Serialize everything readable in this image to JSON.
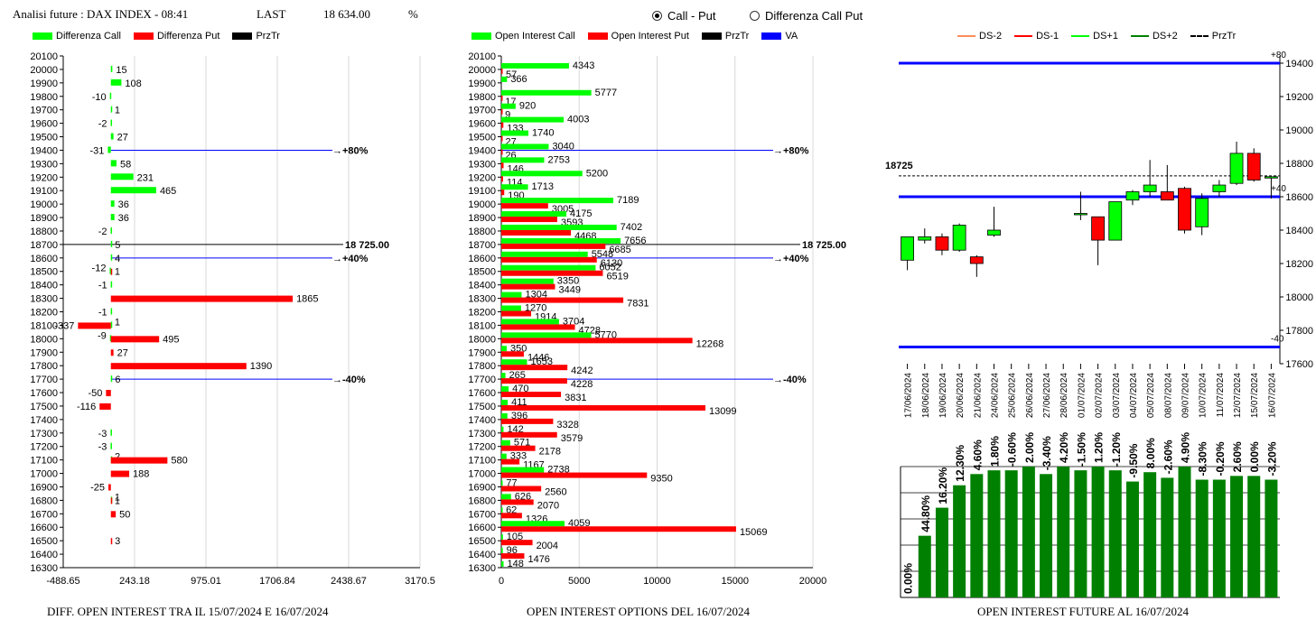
{
  "header": {
    "title": "Analisi future : DAX INDEX - 08:41",
    "last_label": "LAST",
    "last_value": "18 634.00",
    "pct_label": "%"
  },
  "radios": [
    {
      "label": "Call - Put",
      "selected": true
    },
    {
      "label": "Differenza Call Put",
      "selected": false
    }
  ],
  "colors": {
    "green": "#00ff00",
    "red": "#ff0000",
    "black": "#000000",
    "blue": "#0000ff",
    "dark_green": "#008000",
    "orange": "#ff8c5a"
  },
  "legend_left": [
    {
      "label": "Differenza Call",
      "color": "#00ff00"
    },
    {
      "label": "Differenza Put",
      "color": "#ff0000"
    },
    {
      "label": "PrzTr",
      "color": "#000000"
    }
  ],
  "legend_mid": [
    {
      "label": "Open Interest Call",
      "color": "#00ff00"
    },
    {
      "label": "Open Interest Put",
      "color": "#ff0000"
    },
    {
      "label": "PrzTr",
      "color": "#000000"
    },
    {
      "label": "VA",
      "color": "#0000ff"
    }
  ],
  "legend_right": [
    {
      "label": "DS-2",
      "color": "#ff8c5a",
      "style": "solid"
    },
    {
      "label": "DS-1",
      "color": "#ff0000",
      "style": "solid"
    },
    {
      "label": "DS+1",
      "color": "#00ff00",
      "style": "solid"
    },
    {
      "label": "DS+2",
      "color": "#008000",
      "style": "solid"
    },
    {
      "label": "PrzTr",
      "color": "#000000",
      "style": "dashed"
    }
  ],
  "footers": {
    "left": "DIFF. OPEN INTEREST TRA IL 15/07/2024 E 16/07/2024",
    "mid": "OPEN INTEREST OPTIONS DEL 16/07/2024",
    "right": "OPEN INTEREST FUTURE AL 16/07/2024"
  },
  "chart_data": [
    {
      "type": "bar",
      "orientation": "horizontal",
      "strikes": [
        20100,
        20000,
        19900,
        19800,
        19700,
        19600,
        19500,
        19400,
        19300,
        19200,
        19100,
        19000,
        18900,
        18800,
        18700,
        18600,
        18500,
        18400,
        18300,
        18200,
        18100,
        18000,
        17900,
        17800,
        17700,
        17600,
        17500,
        17400,
        17300,
        17200,
        17100,
        17000,
        16900,
        16800,
        16700,
        16600,
        16500,
        16400,
        16300
      ],
      "call_diff": [
        null,
        15,
        108,
        -10,
        1,
        -2,
        27,
        -31,
        58,
        231,
        465,
        36,
        36,
        -2,
        5,
        4,
        -12,
        -1,
        null,
        -1,
        1,
        -9,
        null,
        null,
        6,
        null,
        null,
        null,
        -3,
        -3,
        2,
        null,
        null,
        1,
        null,
        null,
        null,
        null,
        null
      ],
      "put_diff": [
        null,
        null,
        null,
        null,
        null,
        null,
        null,
        null,
        null,
        null,
        null,
        null,
        null,
        null,
        null,
        null,
        1,
        null,
        1865,
        null,
        -337,
        495,
        27,
        1390,
        null,
        -50,
        -116,
        null,
        null,
        null,
        580,
        188,
        -25,
        1,
        50,
        null,
        3,
        null,
        null
      ],
      "x_ticks": [
        "-488.65",
        "243.18",
        "975.01",
        "1706.84",
        "2438.67",
        "3170.5"
      ],
      "xlim": [
        -488.65,
        3170.5
      ],
      "przt_strike": 18700,
      "przt_label": "18 725.00",
      "levels": [
        {
          "strike": 19400,
          "label": "+80%"
        },
        {
          "strike": 18600,
          "label": "+40%"
        },
        {
          "strike": 17700,
          "label": "-40%"
        }
      ]
    },
    {
      "type": "bar",
      "orientation": "horizontal",
      "strikes": [
        20100,
        20000,
        19900,
        19800,
        19700,
        19600,
        19500,
        19400,
        19300,
        19200,
        19100,
        19000,
        18900,
        18800,
        18700,
        18600,
        18500,
        18400,
        18300,
        18200,
        18100,
        18000,
        17900,
        17800,
        17700,
        17600,
        17500,
        17400,
        17300,
        17200,
        17100,
        17000,
        16900,
        16800,
        16700,
        16600,
        16500,
        16400,
        16300
      ],
      "call_oi": [
        null,
        4343,
        366,
        5777,
        920,
        4003,
        1740,
        3040,
        2753,
        5200,
        1713,
        7189,
        4175,
        7402,
        7656,
        5548,
        6052,
        3350,
        1304,
        1270,
        3704,
        5770,
        350,
        1653,
        265,
        470,
        411,
        396,
        142,
        571,
        333,
        2738,
        77,
        626,
        62,
        4059,
        105,
        96,
        148
      ],
      "put_oi": [
        null,
        57,
        null,
        17,
        9,
        133,
        27,
        26,
        146,
        114,
        190,
        3005,
        3593,
        4468,
        6685,
        6130,
        6519,
        3449,
        7831,
        1914,
        4728,
        12268,
        1446,
        4242,
        4228,
        3831,
        13099,
        3328,
        3579,
        2178,
        1167,
        9350,
        2560,
        2070,
        1326,
        15069,
        2004,
        1476,
        null
      ],
      "x_ticks": [
        "0",
        "5000",
        "10000",
        "15000",
        "20000"
      ],
      "xlim": [
        0,
        20000
      ],
      "przt_label": "18 725.00",
      "levels": [
        {
          "strike": 19400,
          "label": "+80%"
        },
        {
          "strike": 18600,
          "label": "+40%"
        },
        {
          "strike": 17700,
          "label": "-40%"
        }
      ]
    },
    {
      "type": "candlestick",
      "dates": [
        "17/06/2024",
        "18/06/2024",
        "19/06/2024",
        "20/06/2024",
        "21/06/2024",
        "24/06/2024",
        "25/06/2024",
        "26/06/2024",
        "27/06/2024",
        "28/06/2024",
        "01/07/2024",
        "02/07/2024",
        "03/07/2024",
        "04/07/2024",
        "05/07/2024",
        "08/07/2024",
        "09/07/2024",
        "10/07/2024",
        "11/07/2024",
        "12/07/2024",
        "15/07/2024",
        "16/07/2024"
      ],
      "ohlc": [
        [
          18220,
          18360,
          18160,
          18360
        ],
        [
          18340,
          18410,
          18320,
          18360
        ],
        [
          18360,
          18380,
          18250,
          18280
        ],
        [
          18280,
          18440,
          18270,
          18430
        ],
        [
          18240,
          18250,
          18120,
          18200
        ],
        [
          18370,
          18540,
          18360,
          18400
        ],
        null,
        null,
        null,
        null,
        [
          18500,
          18630,
          18460,
          18500
        ],
        [
          18480,
          18480,
          18190,
          18340
        ],
        [
          18340,
          18570,
          18340,
          18570
        ],
        [
          18580,
          18640,
          18550,
          18630
        ],
        [
          18630,
          18820,
          18600,
          18670
        ],
        [
          18630,
          18790,
          18580,
          18580
        ],
        [
          18650,
          18660,
          18380,
          18400
        ],
        [
          18420,
          18620,
          18370,
          18590
        ],
        [
          18630,
          18700,
          18600,
          18670
        ],
        [
          18680,
          18930,
          18670,
          18860
        ],
        [
          18860,
          18890,
          18690,
          18700
        ],
        [
          18720,
          18720,
          18590,
          18720
        ]
      ],
      "y_ticks": [
        17600,
        17800,
        18000,
        18200,
        18400,
        18600,
        18800,
        19000,
        19200,
        19400
      ],
      "ylim": [
        17600,
        19400
      ],
      "przt": 18725,
      "przt_label": "18725",
      "ref_lines": [
        19400,
        18600,
        17700
      ],
      "ref_labels": [
        {
          "value": 19400,
          "label": "+80"
        },
        {
          "value": 18600,
          "label": "+40"
        },
        {
          "value": 17700,
          "label": "-40"
        }
      ]
    },
    {
      "type": "bar",
      "values_pct": [
        "0.00%",
        "44.80%",
        "16.20%",
        "12.30%",
        "4.60%",
        "1.80%",
        "-0.60%",
        "2.00%",
        "-3.40%",
        "4.20%",
        "-1.50%",
        "1.20%",
        "-1.20%",
        "-9.50%",
        "8.00%",
        "-2.60%",
        "4.90%",
        "-8.30%",
        "-0.20%",
        "2.60%",
        "0.00%",
        "-3.20%"
      ],
      "relative_height": [
        0.0,
        0.33,
        0.48,
        0.6,
        0.66,
        0.68,
        0.68,
        0.7,
        0.66,
        0.7,
        0.68,
        0.7,
        0.68,
        0.62,
        0.67,
        0.64,
        0.7,
        0.63,
        0.63,
        0.65,
        0.65,
        0.63
      ]
    }
  ]
}
